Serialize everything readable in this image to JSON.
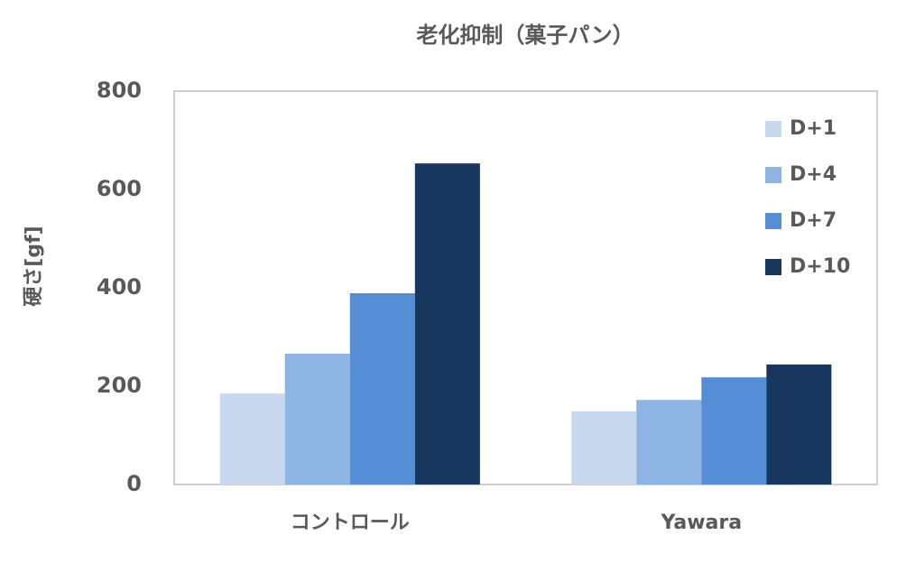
{
  "chart_data": {
    "type": "bar",
    "title": "老化抑制（菓子パン）",
    "y_label": "硬さ[gf]",
    "categories": [
      "コントロール",
      "Yawara"
    ],
    "series": [
      {
        "name": "D+1",
        "color": "#c9daf0",
        "values": [
          185,
          149
        ]
      },
      {
        "name": "D+4",
        "color": "#8eb4e3",
        "values": [
          266,
          172
        ]
      },
      {
        "name": "D+7",
        "color": "#558ed5",
        "values": [
          389,
          218
        ]
      },
      {
        "name": "D+10",
        "color": "#17375e",
        "values": [
          653,
          244
        ]
      }
    ],
    "ylim": [
      0,
      800
    ],
    "yticks": [
      0,
      200,
      400,
      600,
      800
    ],
    "grid": false,
    "legend": "top-right"
  }
}
